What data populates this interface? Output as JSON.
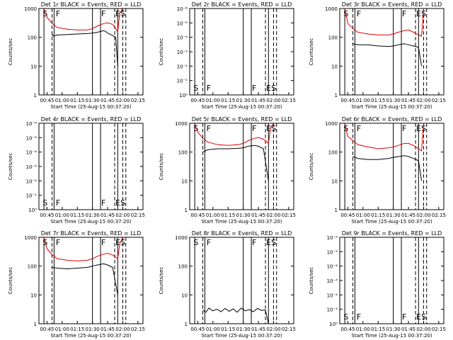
{
  "chart_data": [
    {
      "type": "line",
      "title": "Det 1r BLACK = Events, RED = LLD",
      "ylabel": "Counts/sec",
      "xlabel": "Start Time (25-Aug-15 00:37:20)",
      "y_scale": "log",
      "ylim": [
        1,
        1000
      ],
      "y_ticks": [
        "1",
        "10",
        "100",
        "1000"
      ],
      "x_ticks": [
        "00:45",
        "01:00",
        "01:15",
        "01:30",
        "01:45",
        "02:00",
        "02:15"
      ],
      "flags": [
        "S",
        "F",
        "F",
        "E",
        "S"
      ],
      "series": [
        {
          "color": "#000000",
          "x": [
            "00:50",
            "00:51",
            "00:55",
            "01:05",
            "01:15",
            "01:25",
            "01:30",
            "01:35",
            "01:38",
            "01:41",
            "01:43",
            "01:45",
            "01:49",
            "01:53",
            "01:55"
          ],
          "values": [
            130,
            110,
            120,
            125,
            130,
            135,
            140,
            150,
            160,
            170,
            160,
            140,
            120,
            100,
            10
          ]
        },
        {
          "color": "#e00000",
          "x": [
            "00:42",
            "00:45",
            "00:50",
            "00:55",
            "01:05",
            "01:15",
            "01:25",
            "01:30",
            "01:35",
            "01:41",
            "01:45",
            "01:50",
            "01:53",
            "01:55",
            "01:57",
            "02:00"
          ],
          "values": [
            1000,
            500,
            300,
            220,
            190,
            180,
            180,
            200,
            250,
            300,
            320,
            280,
            200,
            150,
            700,
            1000
          ]
        }
      ]
    },
    {
      "type": "line",
      "title": "Det 2r BLACK = Events, RED = LLD",
      "ylabel": "Counts/sec",
      "xlabel": "Start Time (25-Aug-15 00:37:20)",
      "y_scale": "log",
      "ylim": [
        1e-06,
        1
      ],
      "y_ticks": [
        "10⁰",
        "10⁻¹",
        "10⁻²",
        "10⁻³",
        "10⁻⁴",
        "10⁻⁵",
        "10⁻⁶"
      ],
      "x_ticks": [
        "00:45",
        "01:00",
        "01:15",
        "01:30",
        "01:45",
        "02:00",
        "02:15"
      ],
      "flags": [
        "S",
        "F",
        "F",
        "E",
        "S"
      ],
      "series": []
    },
    {
      "type": "line",
      "title": "Det 3r BLACK = Events, RED = LLD",
      "ylabel": "Counts/sec",
      "xlabel": "Start Time (25-Aug-15 00:37:20)",
      "y_scale": "log",
      "ylim": [
        1,
        1000
      ],
      "y_ticks": [
        "1",
        "10",
        "100",
        "1000"
      ],
      "x_ticks": [
        "00:45",
        "01:00",
        "01:15",
        "01:30",
        "01:45",
        "02:00",
        "02:15"
      ],
      "flags": [
        "S",
        "F",
        "F",
        "E",
        "S"
      ],
      "series": [
        {
          "color": "#000000",
          "x": [
            "00:50",
            "00:55",
            "01:05",
            "01:15",
            "01:25",
            "01:30",
            "01:35",
            "01:41",
            "01:45",
            "01:50",
            "01:55",
            "01:58"
          ],
          "values": [
            60,
            55,
            55,
            50,
            48,
            50,
            55,
            60,
            55,
            50,
            45,
            10
          ]
        },
        {
          "color": "#e00000",
          "x": [
            "00:42",
            "00:45",
            "00:50",
            "00:55",
            "01:05",
            "01:15",
            "01:25",
            "01:30",
            "01:35",
            "01:41",
            "01:45",
            "01:50",
            "01:55",
            "01:58",
            "02:00"
          ],
          "values": [
            1000,
            300,
            200,
            150,
            130,
            120,
            120,
            130,
            150,
            170,
            180,
            150,
            120,
            110,
            1000
          ]
        }
      ]
    },
    {
      "type": "line",
      "title": "Det 4r BLACK = Events, RED = LLD",
      "ylabel": "Counts/sec",
      "xlabel": "Start Time (25-Aug-15 00:37:20)",
      "y_scale": "log",
      "ylim": [
        1e-06,
        1
      ],
      "y_ticks": [
        "10⁰",
        "10⁻¹",
        "10⁻²",
        "10⁻³",
        "10⁻⁴",
        "10⁻⁵",
        "10⁻⁶"
      ],
      "x_ticks": [
        "00:45",
        "01:00",
        "01:15",
        "01:30",
        "01:45",
        "02:00",
        "02:15"
      ],
      "flags": [
        "S",
        "F",
        "F",
        "E",
        "S"
      ],
      "series": []
    },
    {
      "type": "line",
      "title": "Det 5r BLACK = Events, RED = LLD",
      "ylabel": "Counts/sec",
      "xlabel": "Start Time (25-Aug-15 00:37:20)",
      "y_scale": "log",
      "ylim": [
        1,
        1000
      ],
      "y_ticks": [
        "1",
        "10",
        "100",
        "1000"
      ],
      "x_ticks": [
        "00:45",
        "01:00",
        "01:15",
        "01:30",
        "01:45",
        "02:00",
        "02:15"
      ],
      "flags": [
        "S",
        "F",
        "F",
        "E",
        "S"
      ],
      "series": [
        {
          "color": "#000000",
          "x": [
            "00:50",
            "00:55",
            "01:05",
            "01:15",
            "01:25",
            "01:30",
            "01:35",
            "01:41",
            "01:45",
            "01:50",
            "01:55"
          ],
          "values": [
            100,
            120,
            130,
            130,
            135,
            140,
            160,
            170,
            160,
            130,
            10
          ]
        },
        {
          "color": "#e00000",
          "x": [
            "00:42",
            "00:45",
            "00:50",
            "00:55",
            "01:05",
            "01:15",
            "01:25",
            "01:30",
            "01:35",
            "01:41",
            "01:45",
            "01:50",
            "01:55",
            "01:57",
            "02:00"
          ],
          "values": [
            1000,
            500,
            300,
            220,
            180,
            170,
            180,
            200,
            250,
            300,
            320,
            280,
            200,
            700,
            1000
          ]
        }
      ]
    },
    {
      "type": "line",
      "title": "Det 6r BLACK = Events, RED = LLD",
      "ylabel": "Counts/sec",
      "xlabel": "Start Time (25-Aug-15 00:37:20)",
      "y_scale": "log",
      "ylim": [
        1,
        1000
      ],
      "y_ticks": [
        "1",
        "10",
        "100",
        "1000"
      ],
      "x_ticks": [
        "00:45",
        "01:00",
        "01:15",
        "01:30",
        "01:45",
        "02:00",
        "02:15"
      ],
      "flags": [
        "S",
        "F",
        "F",
        "E",
        "S"
      ],
      "series": [
        {
          "color": "#000000",
          "x": [
            "00:50",
            "00:55",
            "01:05",
            "01:15",
            "01:25",
            "01:30",
            "01:35",
            "01:41",
            "01:45",
            "01:50",
            "01:55",
            "01:58"
          ],
          "values": [
            70,
            60,
            55,
            55,
            60,
            65,
            70,
            75,
            70,
            60,
            50,
            10
          ]
        },
        {
          "color": "#e00000",
          "x": [
            "00:42",
            "00:45",
            "00:50",
            "00:55",
            "01:05",
            "01:15",
            "01:25",
            "01:30",
            "01:35",
            "01:41",
            "01:45",
            "01:50",
            "01:55",
            "01:58",
            "02:00"
          ],
          "values": [
            1000,
            350,
            250,
            180,
            150,
            130,
            140,
            150,
            170,
            200,
            200,
            170,
            130,
            110,
            1000
          ]
        }
      ]
    },
    {
      "type": "line",
      "title": "Det 7r BLACK = Events, RED = LLD",
      "ylabel": "Counts/sec",
      "xlabel": "Start Time (25-Aug-15 00:37:20)",
      "y_scale": "log",
      "ylim": [
        1,
        1000
      ],
      "y_ticks": [
        "1",
        "10",
        "100",
        "1000"
      ],
      "x_ticks": [
        "00:45",
        "01:00",
        "01:15",
        "01:30",
        "01:45",
        "02:00",
        "02:15"
      ],
      "flags": [
        "S",
        "F",
        "F",
        "E",
        "S"
      ],
      "series": [
        {
          "color": "#000000",
          "x": [
            "00:50",
            "00:55",
            "01:05",
            "01:15",
            "01:25",
            "01:30",
            "01:35",
            "01:41",
            "01:45",
            "01:50",
            "01:55"
          ],
          "values": [
            90,
            85,
            80,
            85,
            90,
            100,
            110,
            120,
            110,
            90,
            10
          ]
        },
        {
          "color": "#e00000",
          "x": [
            "00:42",
            "00:45",
            "00:50",
            "00:55",
            "01:05",
            "01:15",
            "01:25",
            "01:30",
            "01:35",
            "01:41",
            "01:45",
            "01:50",
            "01:55",
            "01:57",
            "02:00"
          ],
          "values": [
            1000,
            400,
            250,
            180,
            160,
            150,
            160,
            180,
            220,
            260,
            280,
            240,
            180,
            600,
            1000
          ]
        }
      ]
    },
    {
      "type": "line",
      "title": "Det 8r BLACK = Events, RED = LLD",
      "ylabel": "Counts/sec",
      "xlabel": "Start Time (25-Aug-15 00:37:20)",
      "y_scale": "log",
      "ylim": [
        1,
        1000
      ],
      "y_ticks": [
        "1",
        "10",
        "100",
        "1000"
      ],
      "x_ticks": [
        "00:45",
        "01:00",
        "01:15",
        "01:30",
        "01:45",
        "02:00",
        "02:15"
      ],
      "flags": [
        "S",
        "F",
        "F",
        "E",
        "S"
      ],
      "series": [
        {
          "color": "#000000",
          "x": [
            "00:50",
            "00:53",
            "00:56",
            "01:00",
            "01:04",
            "01:08",
            "01:12",
            "01:16",
            "01:20",
            "01:24",
            "01:28",
            "01:32",
            "01:36",
            "01:40",
            "01:44",
            "01:48",
            "01:52",
            "01:55"
          ],
          "values": [
            3,
            2.5,
            3.5,
            2.8,
            3.2,
            2.6,
            3.4,
            2.7,
            3.3,
            2.5,
            3.5,
            2.8,
            3.1,
            2.6,
            3.4,
            2.9,
            3,
            1
          ]
        }
      ]
    },
    {
      "type": "line",
      "title": "Det 9r BLACK = Events, RED = LLD",
      "ylabel": "Counts/sec",
      "xlabel": "Start Time (25-Aug-15 00:37:20)",
      "y_scale": "log",
      "ylim": [
        1e-06,
        1
      ],
      "y_ticks": [
        "10⁰",
        "10⁻¹",
        "10⁻²",
        "10⁻³",
        "10⁻⁴",
        "10⁻⁵",
        "10⁻⁶"
      ],
      "x_ticks": [
        "00:45",
        "01:00",
        "01:15",
        "01:30",
        "01:45",
        "02:00",
        "02:15"
      ],
      "flags": [
        "S",
        "F",
        "F",
        "E",
        "S"
      ],
      "series": []
    }
  ]
}
